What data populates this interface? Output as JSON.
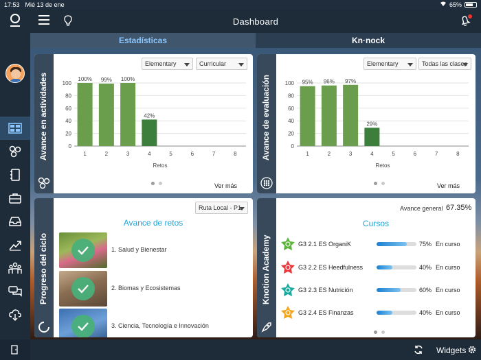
{
  "status_bar": {
    "time": "17:53",
    "date": "Mié 13 de ene",
    "battery": "65%"
  },
  "header": {
    "title": "Dashboard"
  },
  "tabs": [
    {
      "label": "Estadísticas",
      "active": true
    },
    {
      "label": "Kn·nock",
      "active": false
    }
  ],
  "sidebar": {
    "icons": [
      "logo-icon",
      "dashboard-grid-icon",
      "circles-icon",
      "notebook-icon",
      "briefcase-icon",
      "inbox-icon",
      "trending-up-icon",
      "people-icon",
      "chat-icon",
      "cloud-download-icon",
      "exit-icon"
    ]
  },
  "widgets": [
    {
      "title": "Avance en actividades",
      "filters": [
        "Elementary",
        "Curricular"
      ],
      "chart_data": {
        "type": "bar",
        "categories": [
          "1",
          "2",
          "3",
          "4",
          "5",
          "6",
          "7",
          "8"
        ],
        "values": [
          100,
          99,
          100,
          42,
          null,
          null,
          null,
          null
        ],
        "data_labels": [
          "100%",
          "99%",
          "100%",
          "42%",
          "",
          "",
          "",
          ""
        ],
        "y_ticks": [
          "0",
          "20",
          "40",
          "60",
          "80",
          "100"
        ],
        "xlabel": "Retos",
        "ylim": [
          0,
          100
        ],
        "colors": [
          "#6a9e4c",
          "#6a9e4c",
          "#6a9e4c",
          "#3c7e3c"
        ]
      },
      "link": "Ver más"
    },
    {
      "title": "Avance de evaluación",
      "filters": [
        "Elementary",
        "Todas las clases"
      ],
      "chart_data": {
        "type": "bar",
        "categories": [
          "1",
          "2",
          "3",
          "4",
          "5",
          "6",
          "7",
          "8"
        ],
        "values": [
          95,
          96,
          97,
          29,
          null,
          null,
          null,
          null
        ],
        "data_labels": [
          "95%",
          "96%",
          "97%",
          "29%",
          "",
          "",
          "",
          ""
        ],
        "y_ticks": [
          "0",
          "20",
          "40",
          "60",
          "80",
          "100"
        ],
        "xlabel": "Retos",
        "ylim": [
          0,
          100
        ],
        "colors": [
          "#6a9e4c",
          "#6a9e4c",
          "#6a9e4c",
          "#3c7e3c"
        ]
      },
      "link": "Ver más"
    }
  ],
  "progreso": {
    "title": "Progreso del ciclo",
    "filter": "Ruta Local - P1",
    "section_title": "Avance de retos",
    "items": [
      {
        "label": "1. Salud y Bienestar"
      },
      {
        "label": "2. Biomas y Ecosistemas"
      },
      {
        "label": "3. Ciencia, Tecnología e Innovación"
      }
    ]
  },
  "academy": {
    "title": "Knotion Academy",
    "overall_label": "Avance general",
    "overall_value": "67.35%",
    "section_title": "Cursos",
    "courses": [
      {
        "name": "G3 2.1 ES OrganiK",
        "progress": 75,
        "pct": "75%",
        "status": "En curso",
        "color": "#5bb33a"
      },
      {
        "name": "G3 2.2 ES Heedfulness",
        "progress": 40,
        "pct": "40%",
        "status": "En curso",
        "color": "#e8383c"
      },
      {
        "name": "G3 2.3 ES Nutrición",
        "progress": 60,
        "pct": "60%",
        "status": "En curso",
        "color": "#18a9a0"
      },
      {
        "name": "G3 2.4 ES Finanzas",
        "progress": 40,
        "pct": "40%",
        "status": "En curso",
        "color": "#f2a41c"
      }
    ]
  },
  "bottom": {
    "widgets_label": "Widgets"
  }
}
